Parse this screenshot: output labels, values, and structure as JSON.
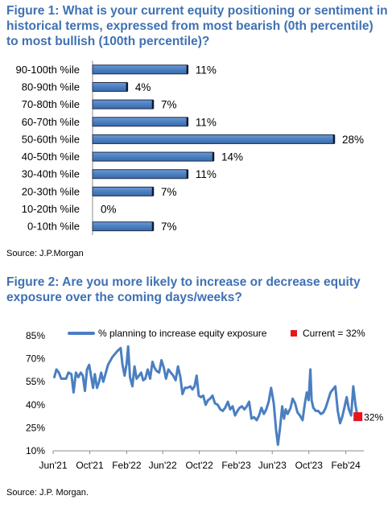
{
  "figure1": {
    "title": "Figure 1: What is your current equity positioning or sentiment in historical terms, expressed from most bearish (0th percentile) to most bullish (100th percentile)?",
    "source": "Source: J.P.Morgan",
    "chart_data": {
      "type": "bar",
      "orientation": "horizontal",
      "categories": [
        "90-100th %ile",
        "80-90th %ile",
        "70-80th %ile",
        "60-70th %ile",
        "50-60th %ile",
        "40-50th %ile",
        "30-40th %ile",
        "20-30th %ile",
        "10-20th %ile",
        "0-10th %ile"
      ],
      "values": [
        11,
        4,
        7,
        11,
        28,
        14,
        11,
        7,
        0,
        7
      ],
      "value_labels": [
        "11%",
        "4%",
        "7%",
        "11%",
        "28%",
        "14%",
        "11%",
        "7%",
        "0%",
        "7%"
      ],
      "xlim": [
        0,
        28
      ],
      "bar_color": "#4a7fc1",
      "grid": false
    }
  },
  "figure2": {
    "title": "Figure 2: Are you more likely to increase or decrease equity exposure over the coming days/weeks?",
    "source": "Source: J.P. Morgan.",
    "chart_data": {
      "type": "line",
      "legend": {
        "placement": "top",
        "series_label": "% planning to increase equity exposure",
        "marker_label": "Current = 32%"
      },
      "ylim": [
        10,
        85
      ],
      "yticks": [
        10,
        25,
        40,
        55,
        70,
        85
      ],
      "ytick_labels": [
        "10%",
        "25%",
        "40%",
        "55%",
        "70%",
        "85%"
      ],
      "xlim": [
        "2021-06",
        "2024-04"
      ],
      "xticks": [
        "2021-06",
        "2021-10",
        "2022-02",
        "2022-06",
        "2022-10",
        "2023-02",
        "2023-06",
        "2023-10",
        "2024-02"
      ],
      "xtick_labels": [
        "Jun'21",
        "Oct'21",
        "Feb'22",
        "Jun'22",
        "Oct'22",
        "Feb'23",
        "Jun'23",
        "Oct'23",
        "Feb'24"
      ],
      "line_color": "#4a7fc1",
      "marker_color": "#e8141b",
      "end_label": "32%",
      "series": [
        {
          "name": "% planning to increase equity exposure",
          "points": [
            [
              "2021-06-05",
              58
            ],
            [
              "2021-06-12",
              63
            ],
            [
              "2021-06-20",
              61
            ],
            [
              "2021-06-28",
              57
            ],
            [
              "2021-07-06",
              57
            ],
            [
              "2021-07-14",
              57
            ],
            [
              "2021-07-22",
              61
            ],
            [
              "2021-08-01",
              60
            ],
            [
              "2021-08-08",
              48
            ],
            [
              "2021-08-16",
              61
            ],
            [
              "2021-08-24",
              58
            ],
            [
              "2021-09-01",
              61
            ],
            [
              "2021-09-08",
              59
            ],
            [
              "2021-09-15",
              49
            ],
            [
              "2021-09-22",
              63
            ],
            [
              "2021-09-29",
              66
            ],
            [
              "2021-10-06",
              58
            ],
            [
              "2021-10-12",
              51
            ],
            [
              "2021-10-18",
              60
            ],
            [
              "2021-10-25",
              51
            ],
            [
              "2021-11-01",
              55
            ],
            [
              "2021-11-08",
              61
            ],
            [
              "2021-11-15",
              55
            ],
            [
              "2021-12-01",
              66
            ],
            [
              "2021-12-15",
              71
            ],
            [
              "2022-01-01",
              75
            ],
            [
              "2022-01-12",
              77
            ],
            [
              "2022-01-18",
              66
            ],
            [
              "2022-01-25",
              59
            ],
            [
              "2022-02-01",
              67
            ],
            [
              "2022-02-06",
              78
            ],
            [
              "2022-02-12",
              58
            ],
            [
              "2022-02-20",
              52
            ],
            [
              "2022-02-27",
              65
            ],
            [
              "2022-03-06",
              57
            ],
            [
              "2022-03-14",
              59
            ],
            [
              "2022-03-21",
              61
            ],
            [
              "2022-03-28",
              56
            ],
            [
              "2022-04-04",
              57
            ],
            [
              "2022-04-12",
              63
            ],
            [
              "2022-04-20",
              57
            ],
            [
              "2022-04-28",
              68
            ],
            [
              "2022-05-05",
              64
            ],
            [
              "2022-05-12",
              62
            ],
            [
              "2022-05-20",
              61
            ],
            [
              "2022-05-28",
              69
            ],
            [
              "2022-06-05",
              64
            ],
            [
              "2022-06-12",
              57
            ],
            [
              "2022-06-20",
              63
            ],
            [
              "2022-06-28",
              61
            ],
            [
              "2022-07-06",
              59
            ],
            [
              "2022-07-14",
              56
            ],
            [
              "2022-07-22",
              65
            ],
            [
              "2022-07-30",
              58
            ],
            [
              "2022-08-06",
              47
            ],
            [
              "2022-08-14",
              51
            ],
            [
              "2022-08-22",
              51
            ],
            [
              "2022-09-01",
              52
            ],
            [
              "2022-09-08",
              50
            ],
            [
              "2022-09-15",
              52
            ],
            [
              "2022-09-22",
              59
            ],
            [
              "2022-09-29",
              46
            ],
            [
              "2022-10-06",
              45
            ],
            [
              "2022-10-14",
              46
            ],
            [
              "2022-10-22",
              40
            ],
            [
              "2022-10-30",
              43
            ],
            [
              "2022-11-06",
              44
            ],
            [
              "2022-11-14",
              46
            ],
            [
              "2022-11-22",
              41
            ],
            [
              "2022-12-01",
              40
            ],
            [
              "2022-12-10",
              37
            ],
            [
              "2022-12-18",
              36
            ],
            [
              "2022-12-26",
              38
            ],
            [
              "2023-01-04",
              42
            ],
            [
              "2023-01-12",
              37
            ],
            [
              "2023-01-20",
              39
            ],
            [
              "2023-01-28",
              33
            ],
            [
              "2023-02-05",
              36
            ],
            [
              "2023-02-12",
              38
            ],
            [
              "2023-02-20",
              39
            ],
            [
              "2023-02-28",
              37
            ],
            [
              "2023-03-08",
              39
            ],
            [
              "2023-03-16",
              42
            ],
            [
              "2023-03-24",
              31
            ],
            [
              "2023-04-01",
              32
            ],
            [
              "2023-04-10",
              30
            ],
            [
              "2023-04-18",
              33
            ],
            [
              "2023-04-26",
              38
            ],
            [
              "2023-05-04",
              34
            ],
            [
              "2023-05-12",
              37
            ],
            [
              "2023-05-20",
              42
            ],
            [
              "2023-05-28",
              51
            ],
            [
              "2023-06-06",
              41
            ],
            [
              "2023-06-14",
              23
            ],
            [
              "2023-06-20",
              14
            ],
            [
              "2023-06-27",
              25
            ],
            [
              "2023-07-04",
              39
            ],
            [
              "2023-07-10",
              31
            ],
            [
              "2023-07-16",
              37
            ],
            [
              "2023-07-22",
              34
            ],
            [
              "2023-08-01",
              38
            ],
            [
              "2023-08-08",
              44
            ],
            [
              "2023-08-16",
              41
            ],
            [
              "2023-08-24",
              35
            ],
            [
              "2023-09-01",
              33
            ],
            [
              "2023-09-10",
              30
            ],
            [
              "2023-09-17",
              40
            ],
            [
              "2023-09-24",
              48
            ],
            [
              "2023-09-30",
              43
            ],
            [
              "2023-10-06",
              63
            ],
            [
              "2023-10-10",
              43
            ],
            [
              "2023-10-16",
              38
            ],
            [
              "2023-10-24",
              36
            ],
            [
              "2023-11-01",
              36
            ],
            [
              "2023-11-10",
              34
            ],
            [
              "2023-11-18",
              35
            ],
            [
              "2023-11-26",
              38
            ],
            [
              "2023-12-04",
              43
            ],
            [
              "2023-12-12",
              48
            ],
            [
              "2023-12-20",
              50
            ],
            [
              "2023-12-28",
              52
            ],
            [
              "2024-01-05",
              36
            ],
            [
              "2024-01-13",
              28
            ],
            [
              "2024-01-20",
              32
            ],
            [
              "2024-01-27",
              38
            ],
            [
              "2024-02-04",
              45
            ],
            [
              "2024-02-11",
              37
            ],
            [
              "2024-02-19",
              33
            ],
            [
              "2024-02-26",
              52
            ],
            [
              "2024-03-04",
              40
            ],
            [
              "2024-03-11",
              32
            ]
          ]
        }
      ]
    }
  }
}
